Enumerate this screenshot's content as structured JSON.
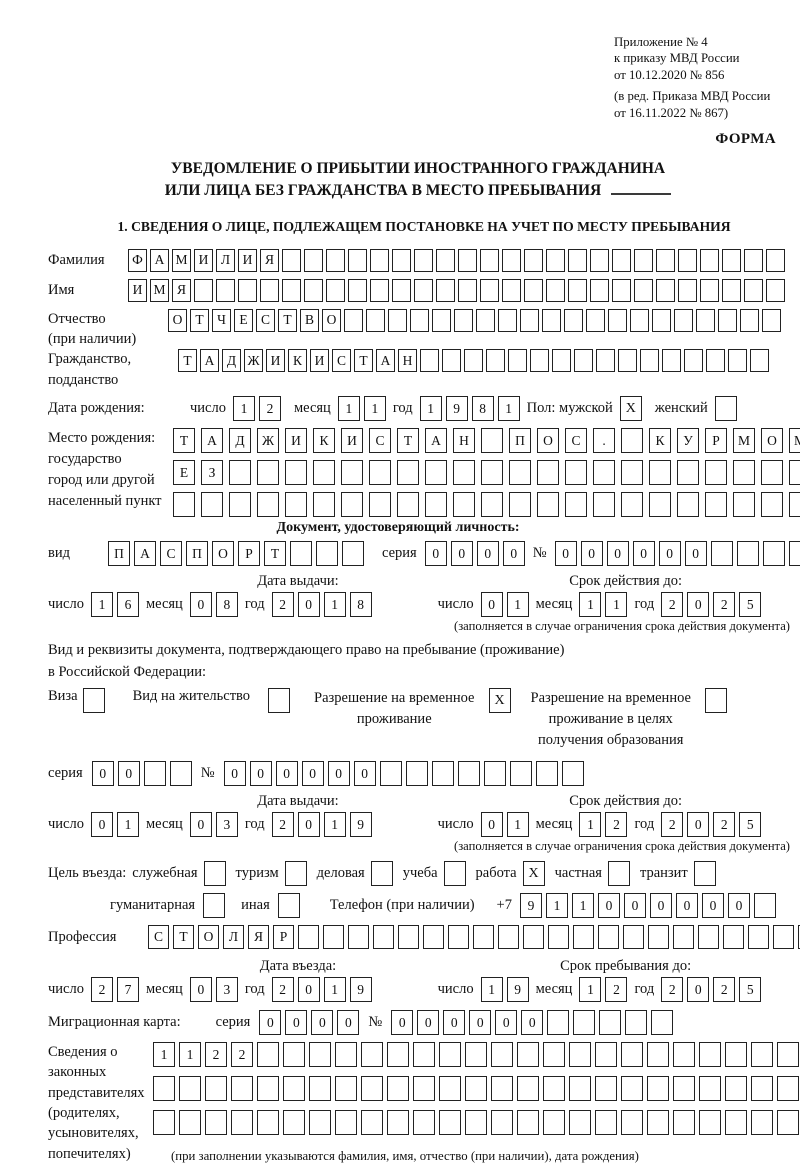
{
  "note_block": {
    "l1": "Приложение № 4",
    "l2": "к приказу МВД России",
    "l3": "от 10.12.2020 № 856",
    "l4": "(в ред. Приказа МВД России",
    "l5": "от 16.11.2022 № 867)"
  },
  "forma_label": "ФОРМА",
  "title": {
    "l1": "УВЕДОМЛЕНИЕ О ПРИБЫТИИ ИНОСТРАННОГО ГРАЖДАНИНА",
    "l2": "ИЛИ ЛИЦА БЕЗ ГРАЖДАНСТВА В МЕСТО ПРЕБЫВАНИЯ"
  },
  "section1_heading": "1. СВЕДЕНИЯ О ЛИЦЕ, ПОДЛЕЖАЩЕМ ПОСТАНОВКЕ НА УЧЕТ ПО МЕСТУ ПРЕБЫВАНИЯ",
  "labels": {
    "surname": "Фамилия",
    "name": "Имя",
    "patronymic": "Отчество",
    "patronymic2": "(при наличии)",
    "citizenship": "Гражданство,",
    "citizenship2": "подданство",
    "birthdate": "Дата рождения:",
    "day": "число",
    "month": "месяц",
    "year": "год",
    "sex_male": "Пол: мужской",
    "sex_female": "женский",
    "birthplace": "Место рождения:",
    "birthplace2": "государство",
    "birthplace3": "город или другой",
    "birthplace4": "населенный пункт",
    "iddoc_heading": "Документ, удостоверяющий личность:",
    "doc_type": "вид",
    "series": "серия",
    "number": "№",
    "issue_date": "Дата выдачи:",
    "valid_until": "Срок действия до:",
    "valid_note": "(заполняется в случае ограничения срока действия документа)",
    "resdoc_line1": "Вид и реквизиты документа, подтверждающего право на пребывание (проживание)",
    "resdoc_line2": "в Российской Федерации:",
    "visa": "Виза",
    "residence_permit": "Вид на жительство",
    "temp_residence1": "Разрешение на временное",
    "temp_residence2": "проживание",
    "temp_residence_edu1": "Разрешение на временное",
    "temp_residence_edu2": "проживание в целях",
    "temp_residence_edu3": "получения образования",
    "purpose": "Цель въезда:",
    "official": "служебная",
    "tourism": "туризм",
    "business": "деловая",
    "study": "учеба",
    "work": "работа",
    "private": "частная",
    "transit": "транзит",
    "humanitarian": "гуманитарная",
    "other": "иная",
    "phone": "Телефон (при наличии)",
    "phone_prefix": "+7",
    "profession": "Профессия",
    "entry_date": "Дата въезда:",
    "stay_until": "Срок пребывания до:",
    "migration_card": "Миграционная карта:",
    "guardians1": "Сведения о",
    "guardians2": "законных",
    "guardians3": "представителях",
    "guardians4": "(родителях,",
    "guardians5": "усыновителях,",
    "guardians6": "попечителях)",
    "guardians_note": "(при заполнении указываются фамилия, имя, отчество (при наличии), дата рождения)"
  },
  "cells": {
    "surname": {
      "v": "ФАМИЛИЯ",
      "n": 30
    },
    "name": {
      "v": "ИМЯ",
      "n": 30
    },
    "patronymic": {
      "v": "ОТЧЕСТВО",
      "n": 28
    },
    "citizenship": {
      "v": "ТАДЖИКИСТАН",
      "n": 27
    },
    "birth_day": {
      "v": "12",
      "n": 2
    },
    "birth_month": {
      "v": "11",
      "n": 2
    },
    "birth_year": {
      "v": "1981",
      "n": 4
    },
    "birthplace1": {
      "v": "ТАДЖИКИСТАН ПОС. КУРМОМБ",
      "n": 24
    },
    "birthplace2": {
      "v": "ЕЗ",
      "n": 24
    },
    "birthplace3": {
      "v": "",
      "n": 24
    },
    "doc_type": {
      "v": "ПАСПОРТ",
      "n": 10
    },
    "doc_series": {
      "v": "0000",
      "n": 4
    },
    "doc_number": {
      "v": "000000",
      "n": 11
    },
    "doc_issue_day": {
      "v": "16",
      "n": 2
    },
    "doc_issue_month": {
      "v": "08",
      "n": 2
    },
    "doc_issue_year": {
      "v": "2018",
      "n": 4
    },
    "doc_valid_day": {
      "v": "01",
      "n": 2
    },
    "doc_valid_month": {
      "v": "11",
      "n": 2
    },
    "doc_valid_year": {
      "v": "2025",
      "n": 4
    },
    "res_series": {
      "v": "00",
      "n": 4
    },
    "res_number": {
      "v": "000000",
      "n": 14
    },
    "res_issue_day": {
      "v": "01",
      "n": 2
    },
    "res_issue_month": {
      "v": "03",
      "n": 2
    },
    "res_issue_year": {
      "v": "2019",
      "n": 4
    },
    "res_valid_day": {
      "v": "01",
      "n": 2
    },
    "res_valid_month": {
      "v": "12",
      "n": 2
    },
    "res_valid_year": {
      "v": "2025",
      "n": 4
    },
    "phone": {
      "v": "911000000",
      "n": 10
    },
    "profession": {
      "v": "СТОЛЯР",
      "n": 27
    },
    "entry_day": {
      "v": "27",
      "n": 2
    },
    "entry_month": {
      "v": "03",
      "n": 2
    },
    "entry_year": {
      "v": "2019",
      "n": 4
    },
    "stay_day": {
      "v": "19",
      "n": 2
    },
    "stay_month": {
      "v": "12",
      "n": 2
    },
    "stay_year": {
      "v": "2025",
      "n": 4
    },
    "mig_series": {
      "v": "0000",
      "n": 4
    },
    "mig_number": {
      "v": "000000",
      "n": 11
    },
    "guardians_row1": {
      "v": "1122",
      "n": 26
    },
    "guardians_row2": {
      "v": "",
      "n": 26
    },
    "guardians_row3": {
      "v": "",
      "n": 26
    }
  },
  "checkboxes": {
    "male": {
      "checked": true
    },
    "female": {
      "checked": false
    },
    "visa": {
      "checked": false
    },
    "residence_permit": {
      "checked": false
    },
    "temp_residence": {
      "checked": true
    },
    "temp_residence_edu": {
      "checked": false
    },
    "official": {
      "checked": false
    },
    "tourism": {
      "checked": false
    },
    "business": {
      "checked": false
    },
    "study": {
      "checked": false
    },
    "work": {
      "checked": true
    },
    "private": {
      "checked": false
    },
    "transit": {
      "checked": false
    },
    "humanitarian": {
      "checked": false
    },
    "other": {
      "checked": false
    }
  }
}
